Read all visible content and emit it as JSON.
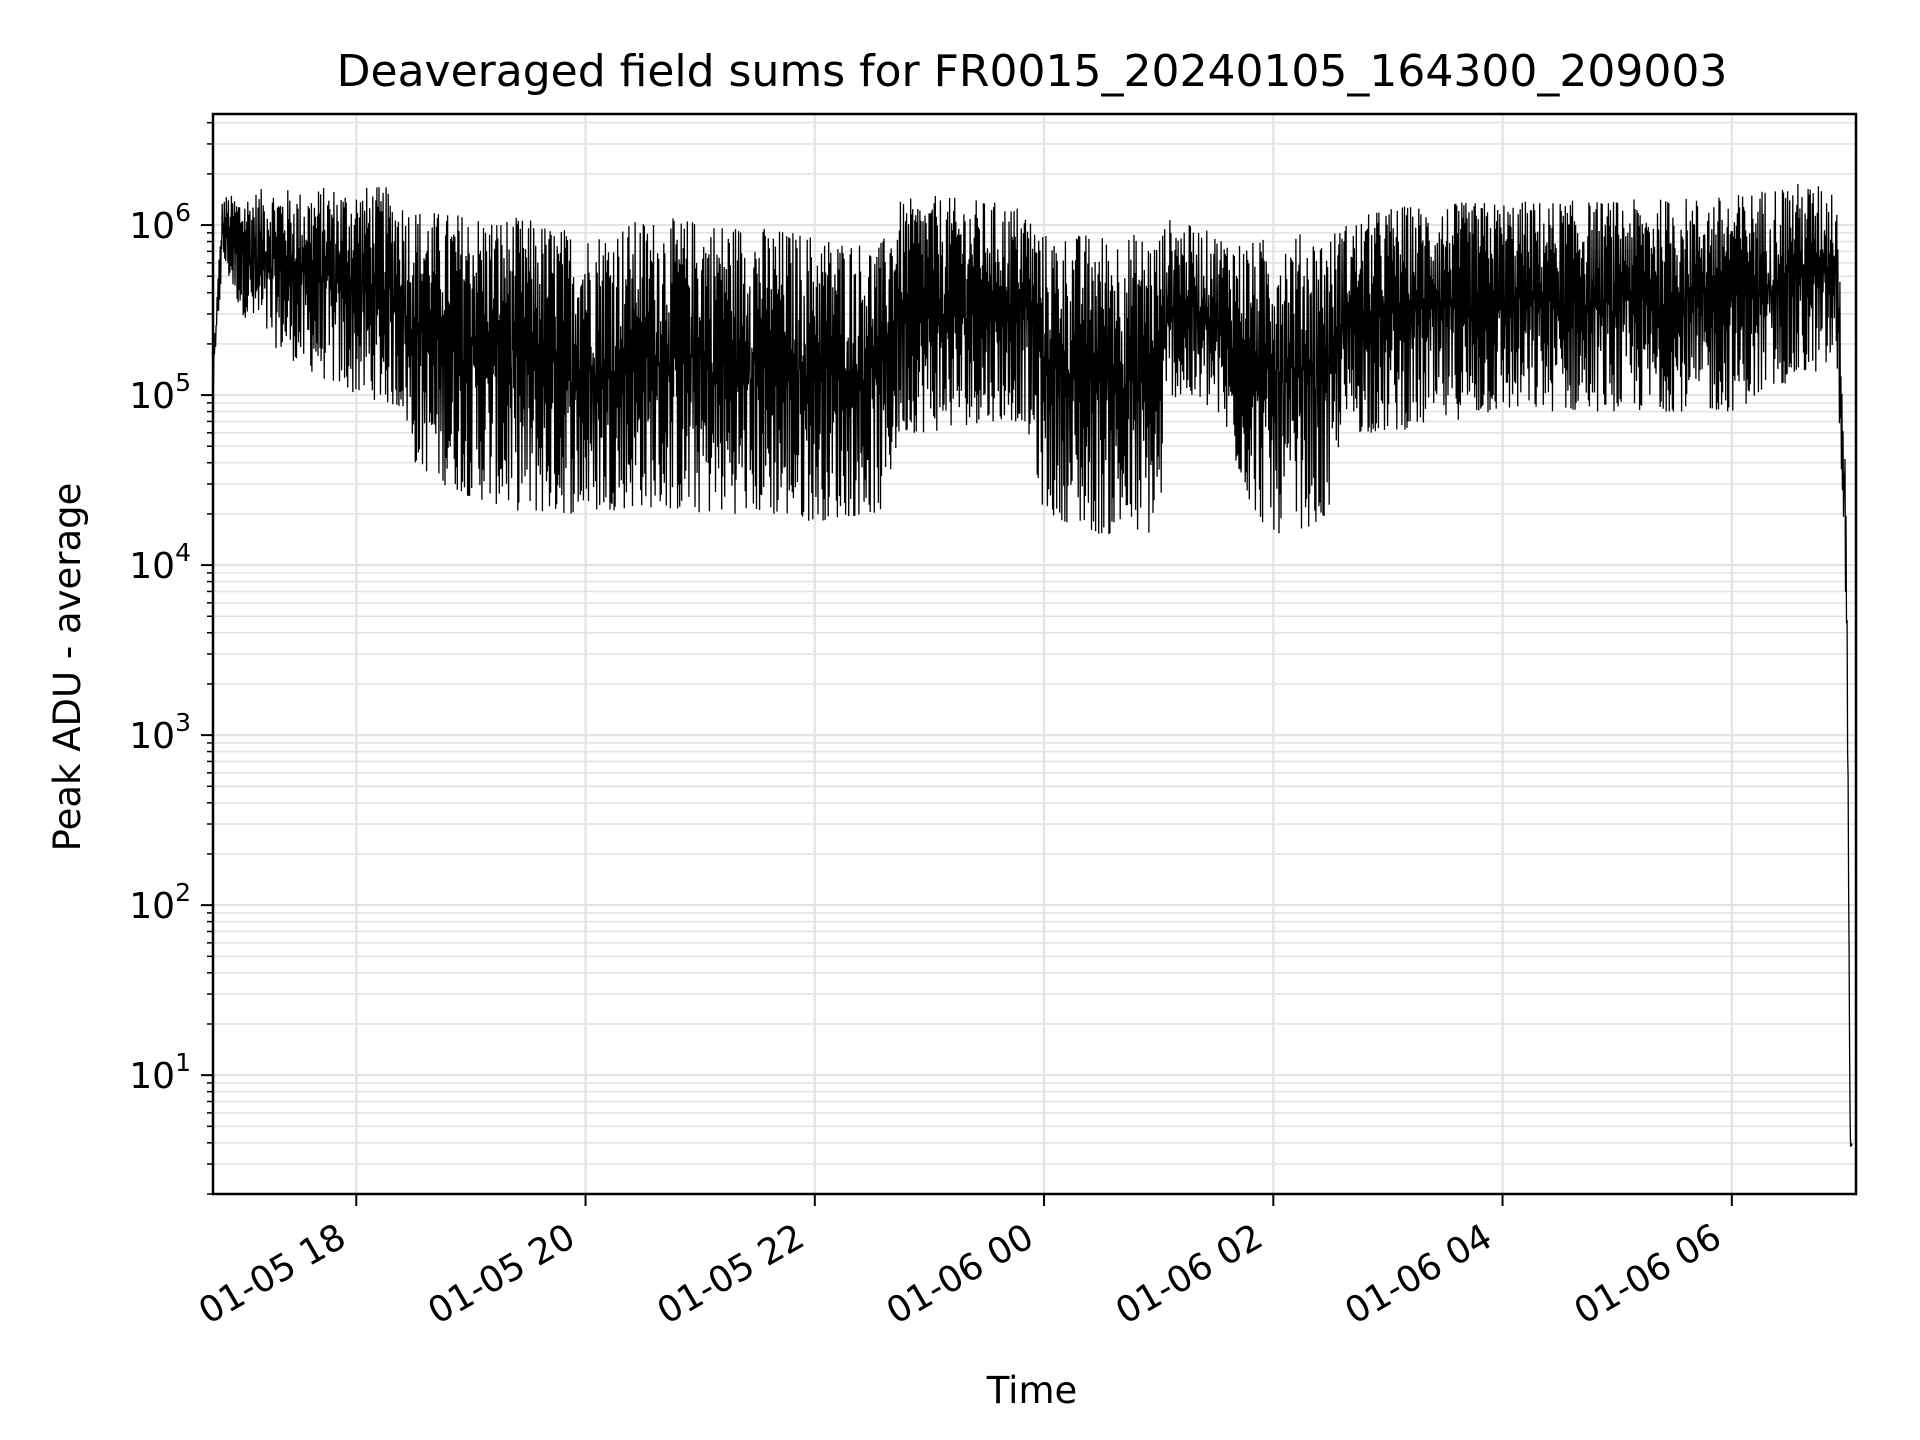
{
  "chart_data": {
    "type": "line",
    "title": "Deaveraged field sums for FR0015_20240105_164300_209003",
    "xlabel": "Time",
    "ylabel": "Peak ADU - average",
    "y_scale": "log",
    "ylim": [
      2,
      4500000
    ],
    "xlim": [
      "2024-01-05T16:45",
      "2024-01-06T07:05"
    ],
    "grid": true,
    "line_color": "#000000",
    "grid_color": "#e3e3e3",
    "x_ticks": [
      {
        "label": "01-05 18",
        "value": "2024-01-05T18:00"
      },
      {
        "label": "01-05 20",
        "value": "2024-01-05T20:00"
      },
      {
        "label": "01-05 22",
        "value": "2024-01-05T22:00"
      },
      {
        "label": "01-06 00",
        "value": "2024-01-06T00:00"
      },
      {
        "label": "01-06 02",
        "value": "2024-01-06T02:00"
      },
      {
        "label": "01-06 04",
        "value": "2024-01-06T04:00"
      },
      {
        "label": "01-06 06",
        "value": "2024-01-06T06:00"
      }
    ],
    "y_ticks": [
      {
        "base": "10",
        "exp": "1",
        "value": 10
      },
      {
        "base": "10",
        "exp": "2",
        "value": 100
      },
      {
        "base": "10",
        "exp": "3",
        "value": 1000
      },
      {
        "base": "10",
        "exp": "4",
        "value": 10000
      },
      {
        "base": "10",
        "exp": "5",
        "value": 100000
      },
      {
        "base": "10",
        "exp": "6",
        "value": 1000000
      }
    ],
    "series": [
      {
        "envelope": {
          "x": [
            "2024-01-05T16:45",
            "2024-01-05T16:50",
            "2024-01-05T17:00",
            "2024-01-05T17:15",
            "2024-01-05T17:30",
            "2024-01-05T17:45",
            "2024-01-05T18:00",
            "2024-01-05T18:15",
            "2024-01-05T18:25",
            "2024-01-05T18:30",
            "2024-01-05T18:45",
            "2024-01-05T19:00",
            "2024-01-05T19:30",
            "2024-01-05T20:00",
            "2024-01-05T20:30",
            "2024-01-05T21:00",
            "2024-01-05T21:30",
            "2024-01-05T22:00",
            "2024-01-05T22:30",
            "2024-01-05T22:35",
            "2024-01-05T22:45",
            "2024-01-05T23:00",
            "2024-01-05T23:30",
            "2024-01-05T23:50",
            "2024-01-06T00:00",
            "2024-01-06T00:30",
            "2024-01-06T01:00",
            "2024-01-06T01:05",
            "2024-01-06T01:30",
            "2024-01-06T01:50",
            "2024-01-06T02:00",
            "2024-01-06T02:30",
            "2024-01-06T02:35",
            "2024-01-06T03:00",
            "2024-01-06T04:00",
            "2024-01-06T05:00",
            "2024-01-06T06:00",
            "2024-01-06T06:30",
            "2024-01-06T06:55",
            "2024-01-06T07:00",
            "2024-01-06T07:02",
            "2024-01-06T07:03"
          ],
          "high": [
            150000,
            1500000,
            1500000,
            1700000,
            1600000,
            1700000,
            1700000,
            1700000,
            1400000,
            1300000,
            1200000,
            1200000,
            1100000,
            900000,
            1100000,
            1100000,
            1000000,
            900000,
            800000,
            800000,
            1400000,
            1500000,
            1400000,
            1300000,
            900000,
            900000,
            900000,
            1100000,
            900000,
            800000,
            900000,
            900000,
            1000000,
            1300000,
            1400000,
            1400000,
            1500000,
            1800000,
            1700000,
            30000,
            4,
            4
          ],
          "low": [
            100000,
            600000,
            300000,
            200000,
            150000,
            120000,
            100000,
            90000,
            80000,
            40000,
            30000,
            25000,
            20000,
            20000,
            22000,
            20000,
            20000,
            18000,
            20000,
            20000,
            60000,
            60000,
            70000,
            70000,
            20000,
            15000,
            15000,
            100000,
            80000,
            20000,
            15000,
            18000,
            60000,
            60000,
            80000,
            80000,
            80000,
            120000,
            150000,
            5000,
            3.8,
            3.8
          ]
        }
      }
    ]
  }
}
